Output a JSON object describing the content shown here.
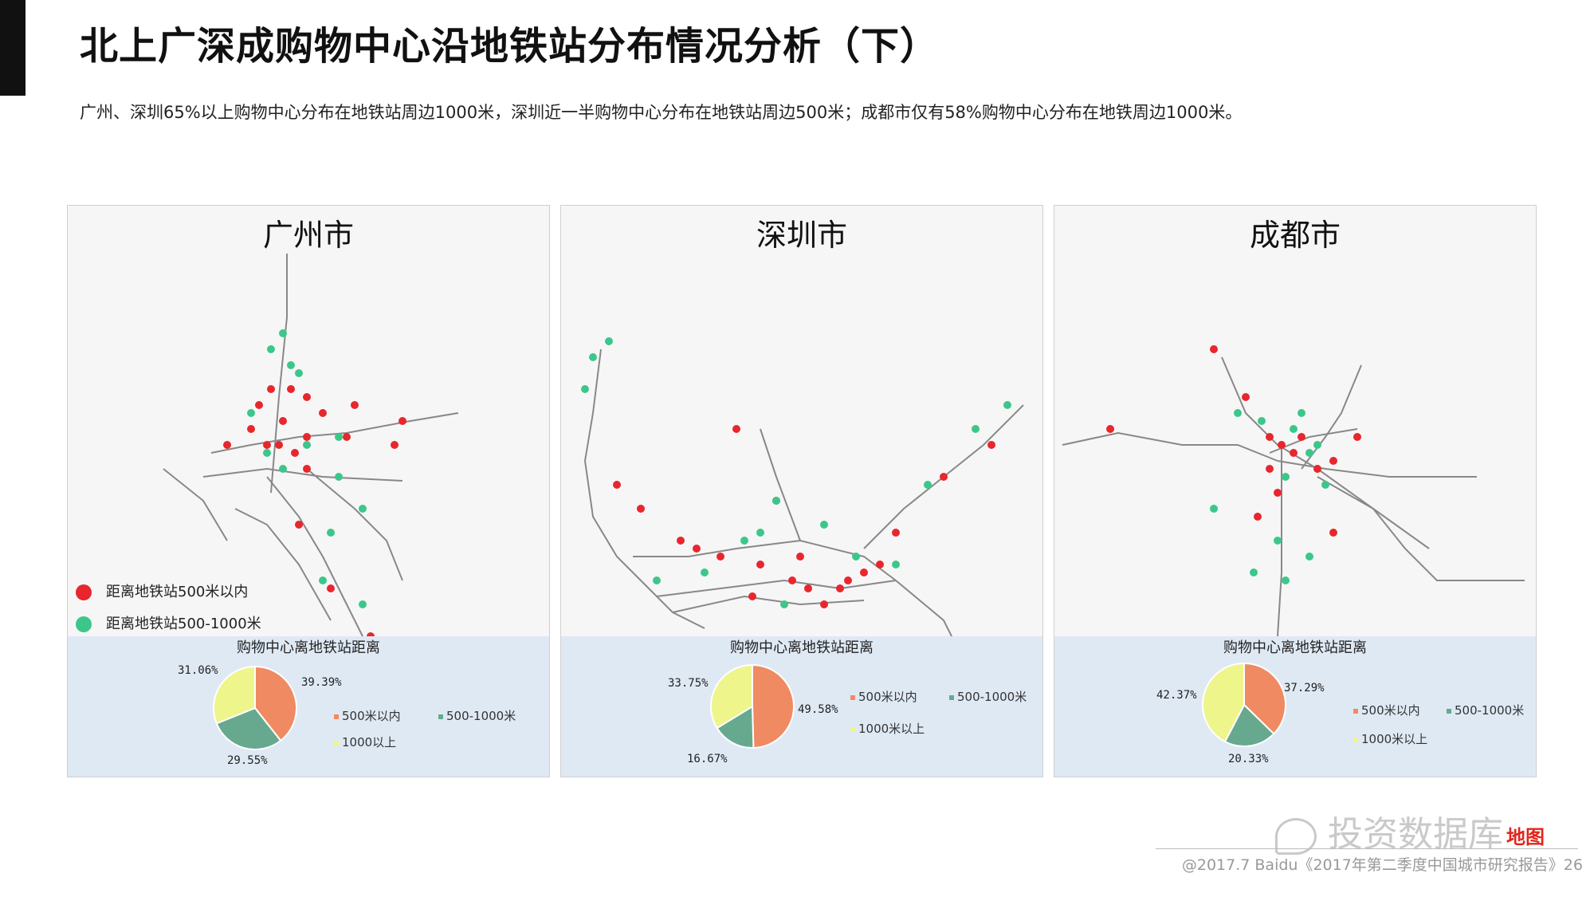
{
  "header": {
    "title": "北上广深成购物中心沿地铁站分布情况分析（下）",
    "subtitle": "广州、深圳65%以上购物中心分布在地铁站周边1000米，深圳近一半购物中心分布在地铁站周边500米；成都市仅有58%购物中心分布在地铁周边1000米。"
  },
  "colors": {
    "within_500": "#ef8a62",
    "m500_1000": "#67a98f",
    "over_1000": "#eef58a",
    "map_red_dot": "#e8262d",
    "map_green_dot": "#3cc78a",
    "pie_background": "#dfe9f4"
  },
  "map_legend": {
    "red_label": "距离地铁站500米以内",
    "green_label": "距离地铁站500-1000米"
  },
  "chart_data": [
    {
      "type": "pie",
      "title": "购物中心离地铁站距离",
      "city": "广州市",
      "categories": [
        "500米以内",
        "500-1000米",
        "1000以上"
      ],
      "values": [
        39.39,
        29.55,
        31.06
      ],
      "value_labels": [
        "39.39%",
        "29.55%",
        "31.06%"
      ],
      "legend": [
        "500米以内",
        "500-1000米",
        "1000以上"
      ]
    },
    {
      "type": "pie",
      "title": "购物中心离地铁站距离",
      "city": "深圳市",
      "categories": [
        "500米以内",
        "500-1000米",
        "1000米以上"
      ],
      "values": [
        49.58,
        16.67,
        33.75
      ],
      "value_labels": [
        "49.58%",
        "16.67%",
        "33.75%"
      ],
      "legend": [
        "500米以内",
        "500-1000米",
        "1000米以上"
      ]
    },
    {
      "type": "pie",
      "title": "购物中心离地铁站距离",
      "city": "成都市",
      "categories": [
        "500米以内",
        "500-1000米",
        "1000米以上"
      ],
      "values": [
        37.29,
        20.33,
        42.37
      ],
      "value_labels": [
        "37.29%",
        "20.33%",
        "42.37%"
      ],
      "legend": [
        "500米以内",
        "500-1000米",
        "1000米以上"
      ]
    }
  ],
  "footer": {
    "watermark": "投资数据库",
    "brand": "地图",
    "source": "@2017.7 Baidu《2017年第二季度中国城市研究报告》26"
  }
}
